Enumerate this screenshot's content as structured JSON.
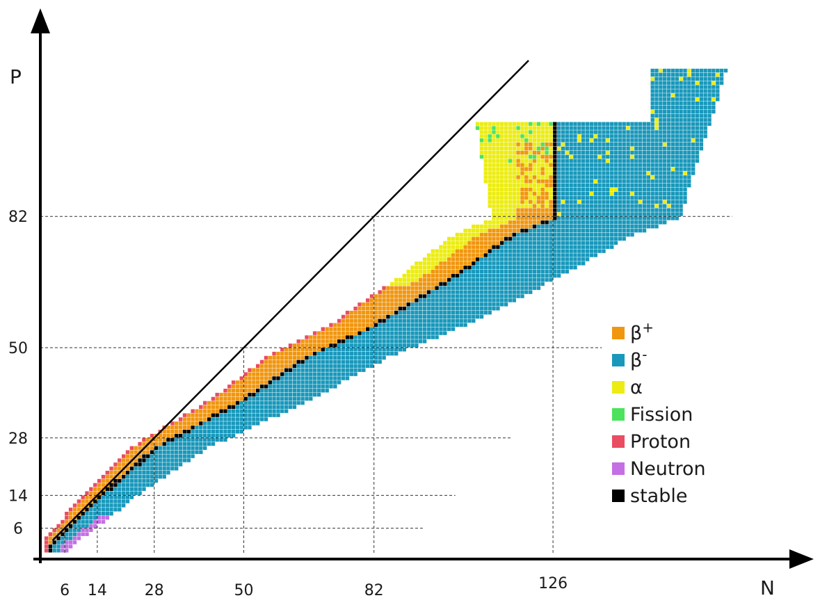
{
  "chart_data": {
    "type": "heatmap",
    "title": "",
    "xlabel": "N",
    "ylabel": "P",
    "xlim": [
      0,
      178
    ],
    "ylim": [
      0,
      118
    ],
    "x_ticks": [
      "6",
      "14",
      "28",
      "50",
      "82",
      "126"
    ],
    "y_ticks": [
      "6",
      "14",
      "28",
      "50",
      "82"
    ],
    "magic_numbers": [
      6,
      14,
      28,
      50,
      82,
      126
    ],
    "reference_line": {
      "type": "N=P",
      "from": [
        3,
        3
      ],
      "to": [
        120,
        120
      ]
    },
    "legend": [
      {
        "key": "beta_plus",
        "label": "β",
        "sup": "+",
        "color": "#f0960f"
      },
      {
        "key": "beta_minus",
        "label": "β",
        "sup": "-",
        "color": "#1998bb"
      },
      {
        "key": "alpha",
        "label": "α",
        "color": "#ecec12"
      },
      {
        "key": "fission",
        "label": "Fission",
        "color": "#4be35b"
      },
      {
        "key": "proton",
        "label": "Proton",
        "color": "#e94d61"
      },
      {
        "key": "neutron",
        "label": "Neutron",
        "color": "#c46fe4"
      },
      {
        "key": "stable",
        "label": "stable",
        "color": "#000000"
      }
    ],
    "regions": [
      {
        "mode": "beta_minus",
        "description": "neutron-rich side, below the stability line",
        "bounds_N_P": [
          [
            5,
            0
          ],
          [
            14,
            4
          ],
          [
            28,
            12
          ],
          [
            50,
            28
          ],
          [
            82,
            48
          ],
          [
            126,
            80
          ],
          [
            132,
            84
          ],
          [
            150,
            95
          ],
          [
            165,
            110
          ],
          [
            174,
            117
          ]
        ]
      },
      {
        "mode": "beta_plus",
        "description": "proton-rich side, above the stability line",
        "bounds_N_P": [
          [
            2,
            5
          ],
          [
            14,
            18
          ],
          [
            28,
            32
          ],
          [
            50,
            51
          ],
          [
            82,
            82
          ],
          [
            116,
            92
          ],
          [
            150,
            110
          ]
        ]
      },
      {
        "mode": "alpha",
        "description": "heavy proton-rich nuclei",
        "P_range": [
          66,
          118
        ]
      },
      {
        "mode": "fission",
        "description": "scattered among heaviest nuclei",
        "P_range": [
          95,
          115
        ]
      },
      {
        "mode": "proton",
        "description": "proton drip line edge",
        "P_range": [
          2,
          85
        ]
      },
      {
        "mode": "neutron",
        "description": "neutron drip line edge, light nuclei",
        "P_range": [
          0,
          10
        ]
      }
    ],
    "stable_line": [
      [
        2,
        2
      ],
      [
        6,
        6
      ],
      [
        14,
        14
      ],
      [
        28,
        26
      ],
      [
        50,
        38
      ],
      [
        65,
        48
      ],
      [
        82,
        56
      ],
      [
        100,
        67
      ],
      [
        116,
        78
      ],
      [
        126,
        82
      ]
    ]
  }
}
